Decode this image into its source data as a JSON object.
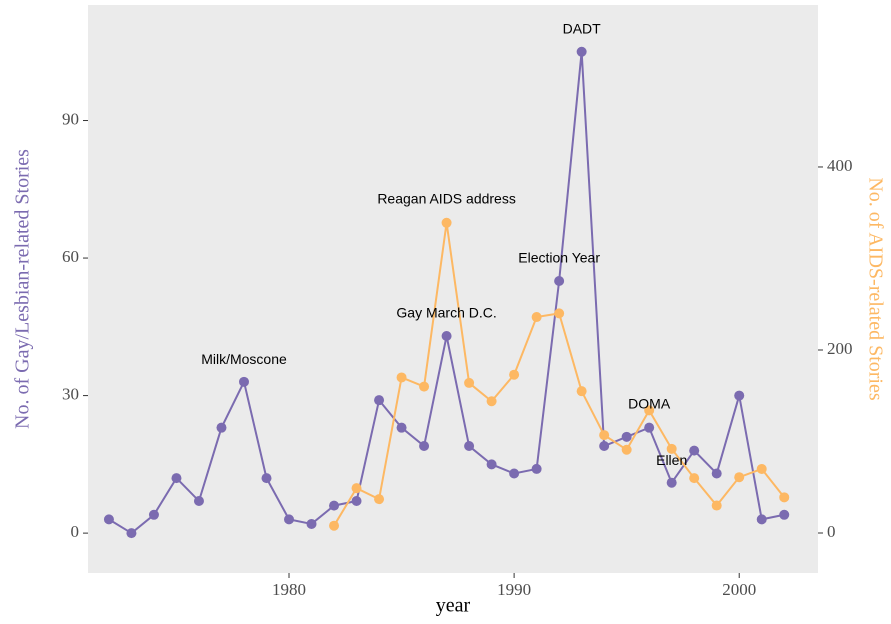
{
  "chart_data": {
    "type": "line",
    "x_label": "year",
    "y_label": "No. of Gay/Lesbian-related Stories",
    "y2_label": "No. of AIDS-related Stories",
    "xlim": [
      1971.07,
      2003.5
    ],
    "xticks": [
      1980,
      1990,
      2000
    ],
    "ylim": [
      -8.7,
      115.2
    ],
    "yticks": [
      0,
      30,
      60,
      90
    ],
    "y2lim": [
      -43.7,
      577
    ],
    "y2ticks": [
      0,
      200,
      400
    ],
    "grid": false,
    "series": [
      {
        "name": "No. of Gay/Lesbian-related Stories",
        "color": "#7b6bb0",
        "axis": "y",
        "x": [
          1972,
          1973,
          1974,
          1975,
          1976,
          1977,
          1978,
          1979,
          1980,
          1981,
          1982,
          1983,
          1984,
          1985,
          1986,
          1987,
          1988,
          1989,
          1990,
          1991,
          1992,
          1993,
          1994,
          1995,
          1996,
          1997,
          1998,
          1999,
          2000,
          2001,
          2002
        ],
        "values": [
          3,
          0,
          4,
          12,
          7,
          23,
          33,
          12,
          3,
          2,
          6,
          7,
          29,
          23,
          19,
          43,
          19,
          15,
          13,
          14,
          55,
          105,
          19,
          21,
          23,
          11,
          18,
          13,
          30,
          3,
          4
        ]
      },
      {
        "name": "No. of AIDS-related Stories",
        "color": "#fdb863",
        "axis": "y2",
        "x": [
          1982,
          1983,
          1984,
          1985,
          1986,
          1987,
          1988,
          1989,
          1990,
          1991,
          1992,
          1993,
          1994,
          1995,
          1996,
          1997,
          1998,
          1999,
          2000,
          2001,
          2002
        ],
        "values": [
          8,
          49,
          37,
          170,
          160,
          339,
          164,
          144,
          173,
          236,
          240,
          155,
          107,
          91,
          134,
          92,
          60,
          30,
          61,
          70,
          39
        ]
      }
    ],
    "annotations": [
      {
        "text": "Milk/Moscone",
        "x": 1978,
        "y": 37.7
      },
      {
        "text": "Reagan AIDS address",
        "x": 1987,
        "y": 72.7
      },
      {
        "text": "Gay March D.C.",
        "x": 1987,
        "y": 47.8
      },
      {
        "text": "Election Year",
        "x": 1992,
        "y": 59.8
      },
      {
        "text": "DADT",
        "x": 1993,
        "y": 109.8
      },
      {
        "text": "DOMA",
        "x": 1996,
        "y": 28
      },
      {
        "text": "Ellen",
        "x": 1997,
        "y": 15.7
      }
    ]
  }
}
